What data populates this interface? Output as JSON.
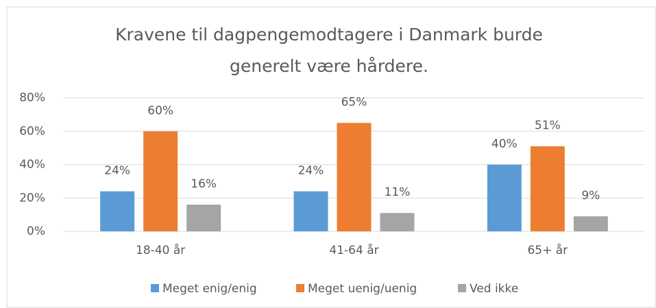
{
  "chart_data": {
    "type": "bar",
    "title": [
      "Kravene til dagpengemodtagere i Danmark burde",
      "generelt være hårdere."
    ],
    "categories": [
      "18-40 år",
      "41-64 år",
      "65+ år"
    ],
    "series": [
      {
        "name": "Meget enig/enig",
        "color": "#5b9bd5",
        "values": [
          24,
          24,
          40
        ],
        "value_labels": [
          "24%",
          "24%",
          "40%"
        ]
      },
      {
        "name": "Meget uenig/uenig",
        "color": "#ed7d31",
        "values": [
          60,
          65,
          51
        ],
        "value_labels": [
          "60%",
          "65%",
          "51%"
        ]
      },
      {
        "name": "Ved ikke",
        "color": "#a5a5a5",
        "values": [
          16,
          11,
          9
        ],
        "value_labels": [
          "16%",
          "11%",
          "9%"
        ]
      }
    ],
    "ylim": [
      0,
      80
    ],
    "yticks": [
      {
        "value": 0,
        "label": "0%"
      },
      {
        "value": 20,
        "label": "20%"
      },
      {
        "value": 40,
        "label": "40%"
      },
      {
        "value": 60,
        "label": "60%"
      },
      {
        "value": 80,
        "label": "80%"
      }
    ],
    "grid": true
  }
}
